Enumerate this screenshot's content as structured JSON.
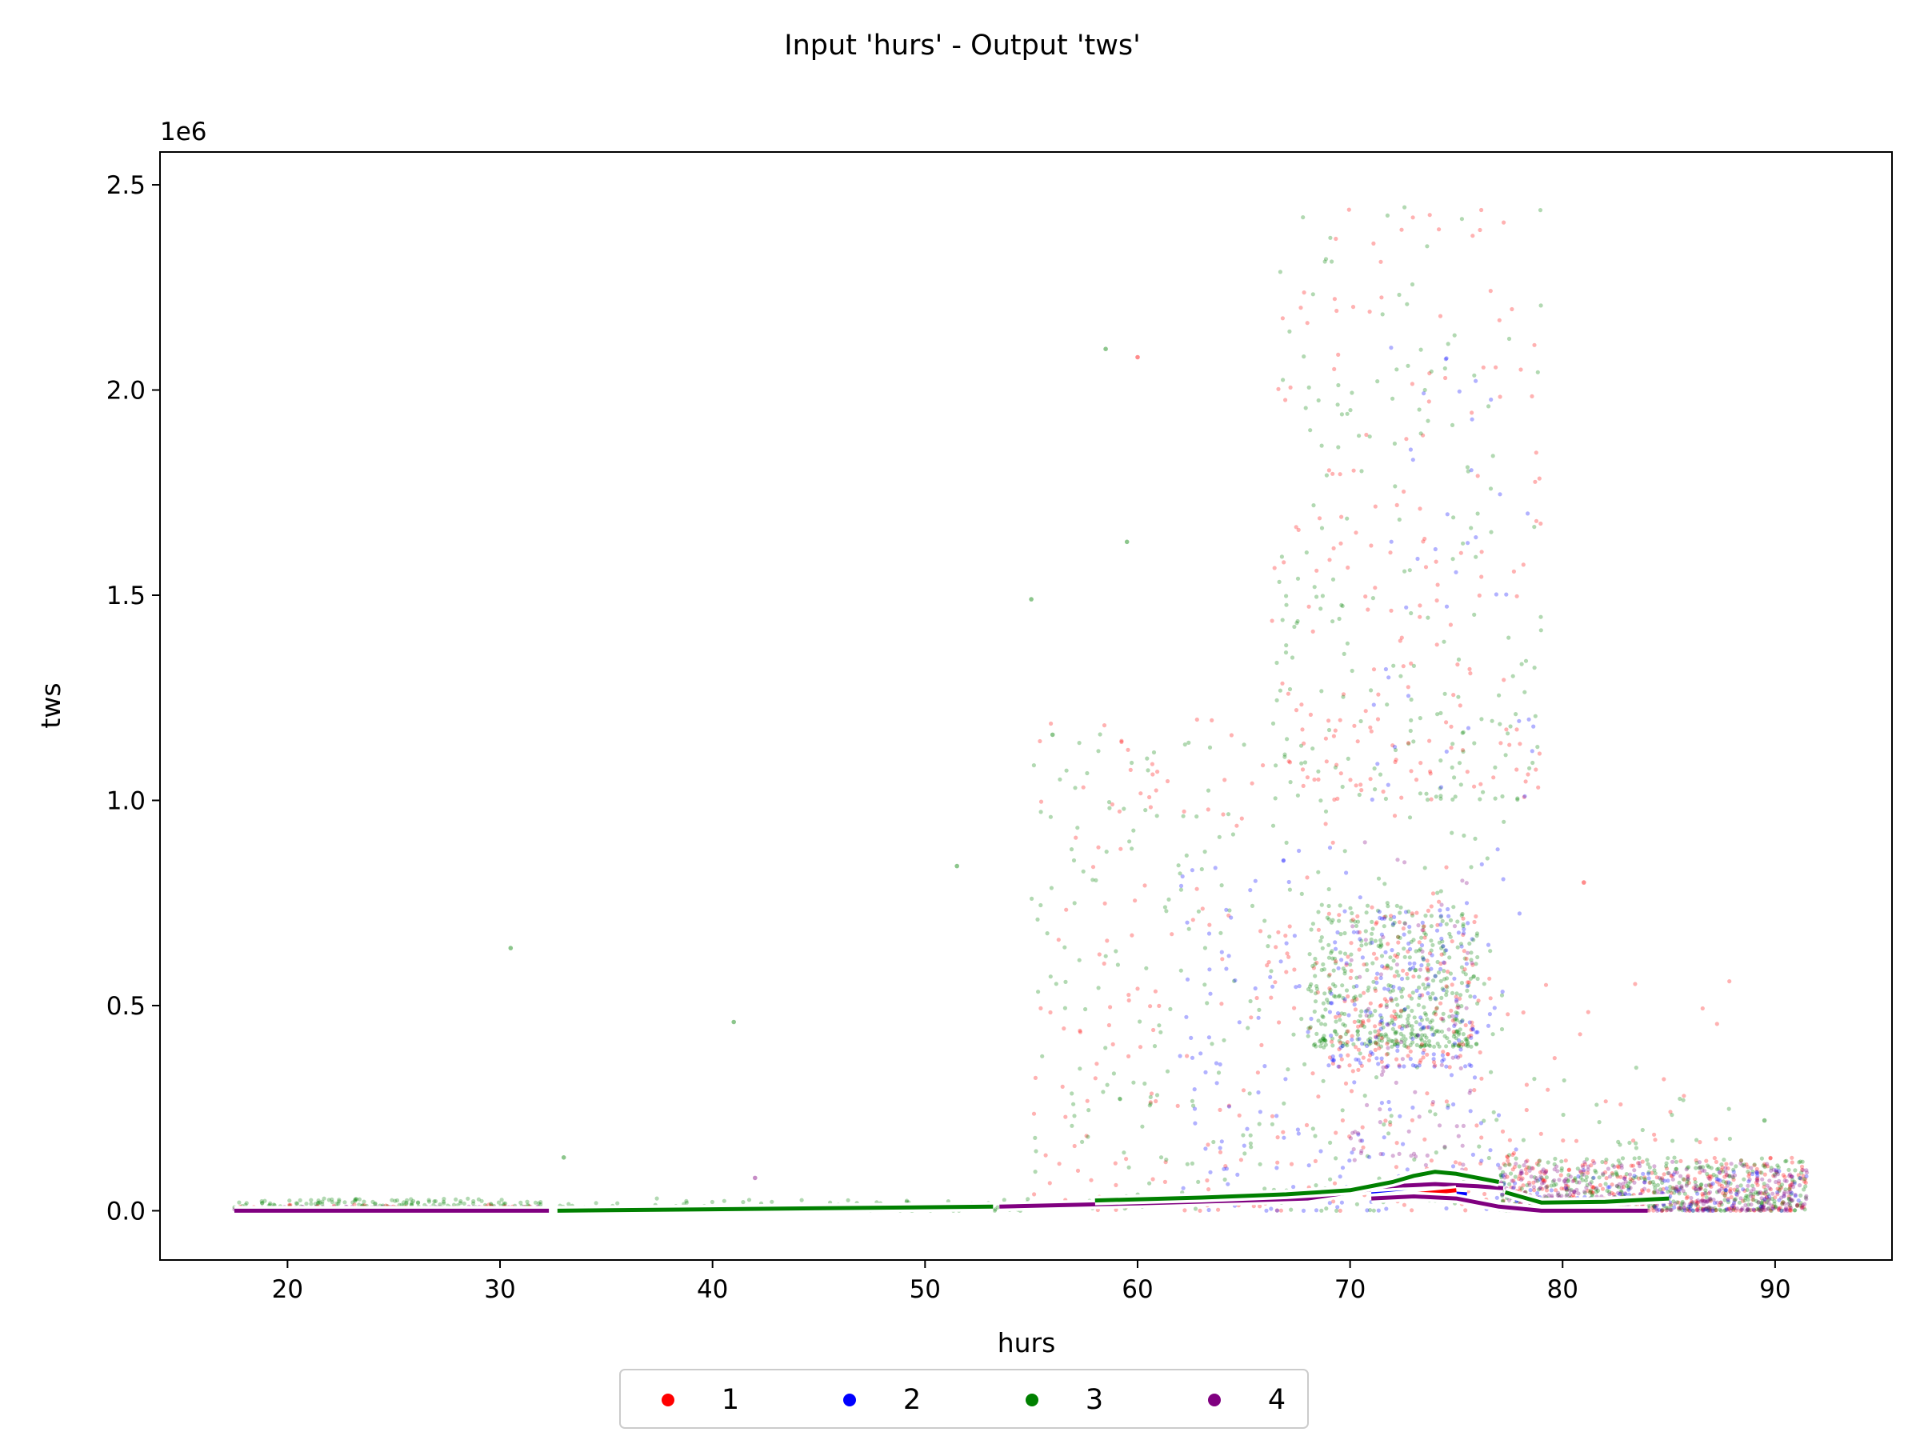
{
  "chart_data": {
    "type": "scatter",
    "title": "Input 'hurs' - Output 'tws'",
    "xlabel": "hurs",
    "ylabel": "tws",
    "y_offset_label": "1e6",
    "xlim": [
      14,
      95.5
    ],
    "ylim": [
      -0.12,
      2.58
    ],
    "y_scale_factor": 1000000,
    "xticks": [
      20,
      30,
      40,
      50,
      60,
      70,
      80,
      90
    ],
    "xtick_labels": [
      "20",
      "30",
      "40",
      "50",
      "60",
      "70",
      "80",
      "90"
    ],
    "yticks": [
      0.0,
      0.5,
      1.0,
      1.5,
      2.0,
      2.5
    ],
    "ytick_labels": [
      "0.0",
      "0.5",
      "1.0",
      "1.5",
      "2.0",
      "2.5"
    ],
    "grid": false,
    "legend_position": "bottom-center (below axes)",
    "series": [
      {
        "name": "1",
        "color": "#ff0000"
      },
      {
        "name": "2",
        "color": "#0000ff"
      },
      {
        "name": "3",
        "color": "#008000"
      },
      {
        "name": "4",
        "color": "#800080"
      }
    ],
    "scatter_clusters": [
      {
        "series": "3",
        "x": [
          17.5,
          32
        ],
        "y": [
          0.0,
          0.03
        ],
        "n": 260
      },
      {
        "series": "4",
        "x": [
          17.5,
          32
        ],
        "y": [
          0.0,
          0.01
        ],
        "n": 200
      },
      {
        "series": "1",
        "x": [
          17.5,
          32
        ],
        "y": [
          0.0,
          0.015
        ],
        "n": 80
      },
      {
        "series": "3",
        "x": [
          32,
          55
        ],
        "y": [
          0.0,
          0.03
        ],
        "n": 90
      },
      {
        "series": "1",
        "x": [
          55,
          78
        ],
        "y": [
          0.0,
          1.2
        ],
        "n": 260
      },
      {
        "series": "3",
        "x": [
          55,
          78
        ],
        "y": [
          0.0,
          1.2
        ],
        "n": 300
      },
      {
        "series": "2",
        "x": [
          62,
          78
        ],
        "y": [
          0.0,
          0.9
        ],
        "n": 160
      },
      {
        "series": "3",
        "x": [
          68,
          76
        ],
        "y": [
          0.4,
          0.75
        ],
        "n": 420
      },
      {
        "series": "1",
        "x": [
          69,
          76
        ],
        "y": [
          0.35,
          0.75
        ],
        "n": 150
      },
      {
        "series": "2",
        "x": [
          69,
          76
        ],
        "y": [
          0.35,
          0.75
        ],
        "n": 140
      },
      {
        "series": "4",
        "x": [
          70,
          76
        ],
        "y": [
          0.1,
          0.9
        ],
        "n": 80
      },
      {
        "series": "1",
        "x": [
          66,
          79
        ],
        "y": [
          1.0,
          2.45
        ],
        "n": 160
      },
      {
        "series": "3",
        "x": [
          66,
          79
        ],
        "y": [
          1.0,
          2.45
        ],
        "n": 180
      },
      {
        "series": "2",
        "x": [
          71,
          79
        ],
        "y": [
          1.0,
          2.2
        ],
        "n": 40
      },
      {
        "series": "1",
        "x": [
          77,
          91.5
        ],
        "y": [
          0.0,
          0.13
        ],
        "n": 350
      },
      {
        "series": "3",
        "x": [
          77,
          91.5
        ],
        "y": [
          0.0,
          0.13
        ],
        "n": 420
      },
      {
        "series": "4",
        "x": [
          77,
          91.5
        ],
        "y": [
          0.0,
          0.12
        ],
        "n": 380
      },
      {
        "series": "2",
        "x": [
          77,
          91.5
        ],
        "y": [
          0.0,
          0.1
        ],
        "n": 120
      },
      {
        "series": "1",
        "x": [
          78,
          88
        ],
        "y": [
          0.15,
          0.6
        ],
        "n": 25
      },
      {
        "series": "3",
        "x": [
          78,
          88
        ],
        "y": [
          0.15,
          0.4
        ],
        "n": 20
      }
    ],
    "scatter_outliers": [
      {
        "series": "3",
        "x": 30.5,
        "y": 0.64
      },
      {
        "series": "3",
        "x": 41,
        "y": 0.46
      },
      {
        "series": "3",
        "x": 55,
        "y": 1.49
      },
      {
        "series": "3",
        "x": 56,
        "y": 1.16
      },
      {
        "series": "3",
        "x": 58.5,
        "y": 2.1
      },
      {
        "series": "1",
        "x": 60,
        "y": 2.08
      },
      {
        "series": "3",
        "x": 59.5,
        "y": 1.63
      },
      {
        "series": "3",
        "x": 33,
        "y": 0.13
      },
      {
        "series": "4",
        "x": 42,
        "y": 0.08
      },
      {
        "series": "3",
        "x": 51.5,
        "y": 0.84
      },
      {
        "series": "1",
        "x": 81,
        "y": 0.8
      },
      {
        "series": "3",
        "x": 89.5,
        "y": 0.22
      }
    ],
    "trend_lines": [
      {
        "series": "4",
        "x": [
          17.5,
          32.3
        ],
        "y": [
          0.0,
          0.0
        ]
      },
      {
        "series": "3",
        "x": [
          32.7,
          53.2
        ],
        "y": [
          0.0,
          0.01
        ]
      },
      {
        "series": "4",
        "x": [
          53.5,
          60,
          65,
          68,
          70,
          72,
          74,
          76,
          77.2
        ],
        "y": [
          0.01,
          0.018,
          0.025,
          0.03,
          0.045,
          0.06,
          0.065,
          0.06,
          0.055
        ]
      },
      {
        "series": "3",
        "x": [
          58,
          63,
          67,
          70,
          72,
          73,
          74,
          75,
          77
        ],
        "y": [
          0.025,
          0.032,
          0.04,
          0.05,
          0.07,
          0.085,
          0.095,
          0.09,
          0.07
        ]
      },
      {
        "series": "2",
        "x": [
          71,
          72.5,
          74,
          75.5
        ],
        "y": [
          0.04,
          0.045,
          0.045,
          0.04
        ]
      },
      {
        "series": "1",
        "x": [
          71,
          72,
          73,
          74,
          75
        ],
        "y": [
          0.03,
          0.035,
          0.04,
          0.045,
          0.05
        ]
      },
      {
        "series": "3",
        "x": [
          77.3,
          79,
          82,
          85
        ],
        "y": [
          0.045,
          0.02,
          0.022,
          0.03
        ]
      },
      {
        "series": "4",
        "x": [
          71,
          73,
          75,
          77,
          79,
          81,
          84
        ],
        "y": [
          0.03,
          0.035,
          0.03,
          0.01,
          0.0,
          0.0,
          0.0
        ]
      }
    ]
  }
}
